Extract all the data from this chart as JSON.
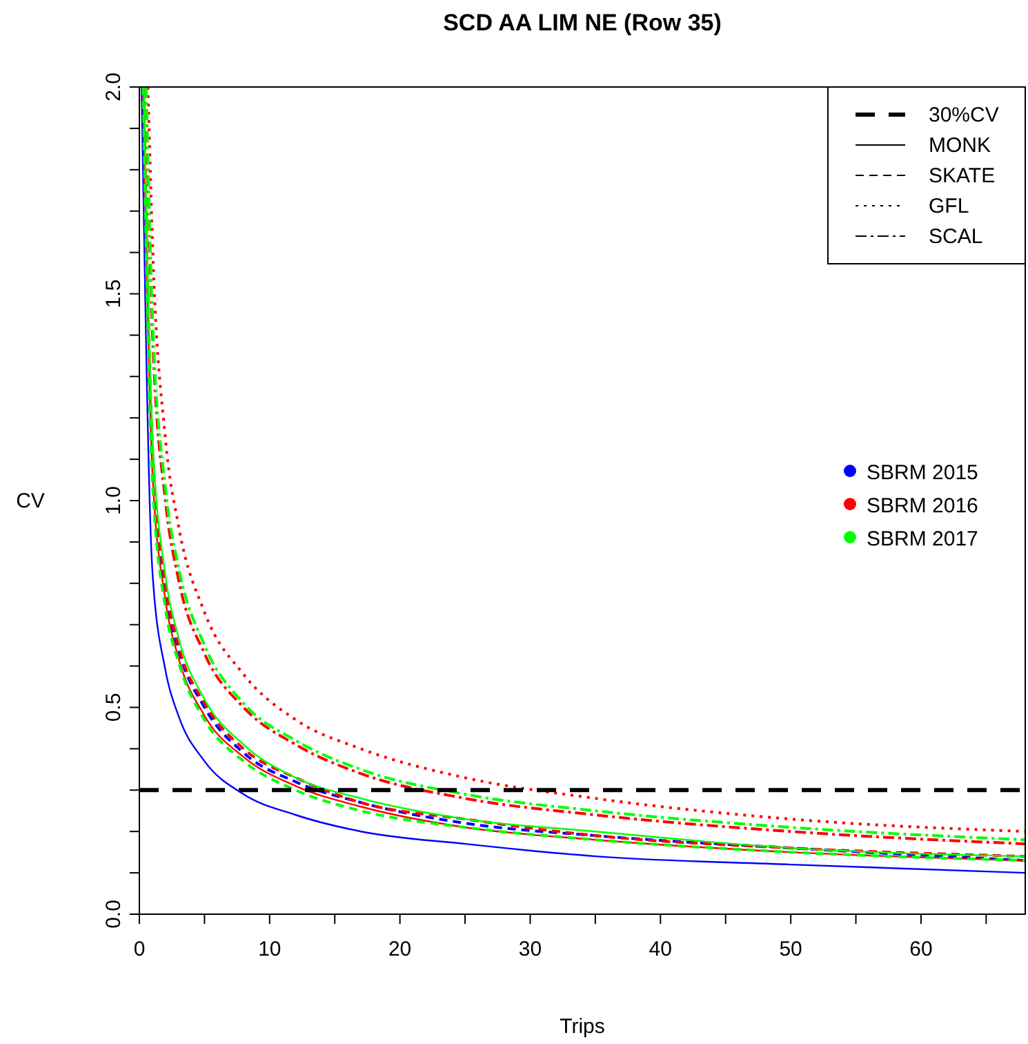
{
  "chart_data": {
    "type": "line",
    "title": "SCD AA LIM NE (Row 35)",
    "xlabel": "Trips",
    "ylabel": "CV",
    "xlim": [
      0,
      68
    ],
    "xticks": [
      0,
      {
        "value": 5,
        "label": null
      },
      10,
      {
        "value": 15,
        "label": null
      },
      20,
      {
        "value": 25,
        "label": null
      },
      30,
      {
        "value": 35,
        "label": null
      },
      40,
      {
        "value": 45,
        "label": null
      },
      50,
      {
        "value": 55,
        "label": null
      },
      60,
      {
        "value": 65,
        "label": null
      }
    ],
    "ylim": [
      0,
      2
    ],
    "yticks": [
      {
        "value": 0,
        "label": "0.0"
      },
      {
        "value": 0.1,
        "label": null
      },
      {
        "value": 0.2,
        "label": null
      },
      {
        "value": 0.3,
        "label": null
      },
      {
        "value": 0.4,
        "label": null
      },
      {
        "value": 0.5,
        "label": "0.5"
      },
      {
        "value": 0.6,
        "label": null
      },
      {
        "value": 0.7,
        "label": null
      },
      {
        "value": 0.8,
        "label": null
      },
      {
        "value": 0.9,
        "label": null
      },
      {
        "value": 1,
        "label": "1.0"
      },
      {
        "value": 1.1,
        "label": null
      },
      {
        "value": 1.2,
        "label": null
      },
      {
        "value": 1.3,
        "label": null
      },
      {
        "value": 1.4,
        "label": null
      },
      {
        "value": 1.5,
        "label": "1.5"
      },
      {
        "value": 1.6,
        "label": null
      },
      {
        "value": 1.7,
        "label": null
      },
      {
        "value": 1.8,
        "label": null
      },
      {
        "value": 1.9,
        "label": null
      },
      {
        "value": 2,
        "label": "2.0"
      }
    ],
    "grid": false,
    "legend": "top right",
    "ref_lines": [
      {
        "axis": "y",
        "value": 0.3,
        "label": "30%CV",
        "color": "#000000",
        "line_style": "dashed"
      }
    ],
    "annotations": [
      "MONK",
      "SKATE",
      "GFL",
      "SCAL",
      "SBRM 2015",
      "SBRM 2016",
      "SBRM 2017"
    ],
    "series": [
      {
        "color": "#0000ff",
        "line_style": "solid",
        "x": [
          0.17,
          1,
          2,
          3,
          5,
          8,
          12,
          17,
          25,
          35,
          50,
          68
        ],
        "values": [
          2,
          0.83,
          0.59,
          0.48,
          0.37,
          0.29,
          0.24,
          0.2,
          0.17,
          0.14,
          0.12,
          0.1
        ]
      },
      {
        "color": "#0000ff",
        "line_style": "dashed",
        "x": [
          0.31,
          1,
          2,
          3,
          5,
          8,
          12,
          17,
          25,
          35,
          50,
          68
        ],
        "values": [
          2,
          1.11,
          0.78,
          0.64,
          0.5,
          0.39,
          0.32,
          0.27,
          0.22,
          0.19,
          0.16,
          0.13
        ]
      },
      {
        "color": "#ff0000",
        "line_style": "solid",
        "x": [
          0.29,
          1,
          2,
          3,
          5,
          8,
          12,
          17,
          25,
          35,
          50,
          68
        ],
        "values": [
          2,
          1.07,
          0.76,
          0.62,
          0.48,
          0.38,
          0.31,
          0.26,
          0.21,
          0.18,
          0.15,
          0.13
        ]
      },
      {
        "color": "#ff0000",
        "line_style": "dashed",
        "x": [
          0.32,
          1,
          2,
          3,
          5,
          8,
          12,
          17,
          25,
          35,
          50,
          68
        ],
        "values": [
          2,
          1.13,
          0.8,
          0.65,
          0.51,
          0.4,
          0.33,
          0.27,
          0.23,
          0.19,
          0.16,
          0.14
        ]
      },
      {
        "color": "#ff0000",
        "line_style": "dotted",
        "x": [
          0.66,
          1,
          2,
          3,
          5,
          8,
          12,
          17,
          25,
          35,
          50,
          68
        ],
        "values": [
          2,
          1.63,
          1.15,
          0.94,
          0.73,
          0.58,
          0.47,
          0.4,
          0.33,
          0.28,
          0.23,
          0.2
        ]
      },
      {
        "color": "#ff0000",
        "line_style": "dashdot",
        "x": [
          0.5,
          1,
          2,
          3,
          5,
          8,
          12,
          17,
          25,
          35,
          50,
          68
        ],
        "values": [
          2,
          1.41,
          1,
          0.81,
          0.63,
          0.5,
          0.41,
          0.34,
          0.28,
          0.24,
          0.2,
          0.17
        ]
      },
      {
        "color": "#00ff00",
        "line_style": "solid",
        "x": [
          0.34,
          1,
          2,
          3,
          5,
          8,
          12,
          17,
          25,
          35,
          50,
          68
        ],
        "values": [
          2,
          1.16,
          0.82,
          0.67,
          0.52,
          0.41,
          0.33,
          0.28,
          0.23,
          0.2,
          0.16,
          0.14
        ]
      },
      {
        "color": "#00ff00",
        "line_style": "dashed",
        "x": [
          0.28,
          1,
          2,
          3,
          5,
          8,
          12,
          17,
          25,
          35,
          50,
          68
        ],
        "values": [
          2,
          1.05,
          0.74,
          0.61,
          0.47,
          0.37,
          0.3,
          0.25,
          0.21,
          0.18,
          0.15,
          0.13
        ]
      },
      {
        "color": "#00ff00",
        "line_style": "dashdot",
        "x": [
          0.53,
          1,
          2,
          3,
          5,
          8,
          12,
          17,
          25,
          35,
          50,
          68
        ],
        "values": [
          2,
          1.45,
          1.03,
          0.84,
          0.65,
          0.51,
          0.42,
          0.35,
          0.29,
          0.25,
          0.21,
          0.18
        ]
      }
    ]
  }
}
